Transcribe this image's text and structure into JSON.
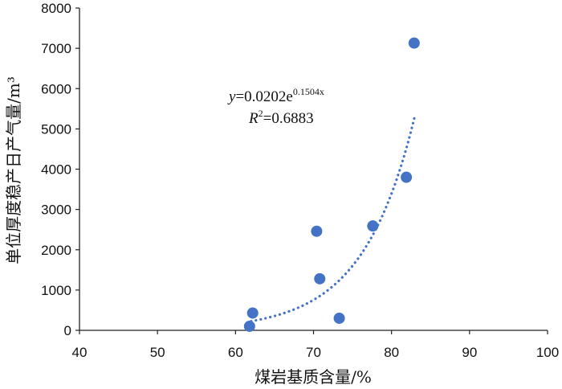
{
  "chart_data": {
    "type": "scatter",
    "xlabel": "煤岩基质含量/%",
    "ylabel": "单位厚度稳产日产气量/m³",
    "xlim": [
      40,
      100
    ],
    "ylim": [
      0,
      8000
    ],
    "xticks": [
      "40",
      "50",
      "60",
      "70",
      "80",
      "90",
      "100"
    ],
    "yticks": [
      "0",
      "1000",
      "2000",
      "3000",
      "4000",
      "5000",
      "6000",
      "7000",
      "8000"
    ],
    "grid": false,
    "points": [
      {
        "x": 61.8,
        "y": 100
      },
      {
        "x": 62.2,
        "y": 430
      },
      {
        "x": 70.4,
        "y": 2460
      },
      {
        "x": 70.8,
        "y": 1280
      },
      {
        "x": 73.3,
        "y": 300
      },
      {
        "x": 77.6,
        "y": 2590
      },
      {
        "x": 81.9,
        "y": 3800
      },
      {
        "x": 82.9,
        "y": 7130
      }
    ],
    "trendline": {
      "type": "exponential",
      "a": 0.0202,
      "b": 0.1504,
      "x_range": [
        62,
        83
      ],
      "equation_label": {
        "y": "y",
        "eq": "=0.0202e",
        "exp": "0.1504x"
      },
      "r2_label": {
        "r": "R",
        "sup": "2",
        "eq": "=0.6883"
      }
    },
    "marker_color": "#4472C4",
    "trend_color": "#4472C4"
  }
}
